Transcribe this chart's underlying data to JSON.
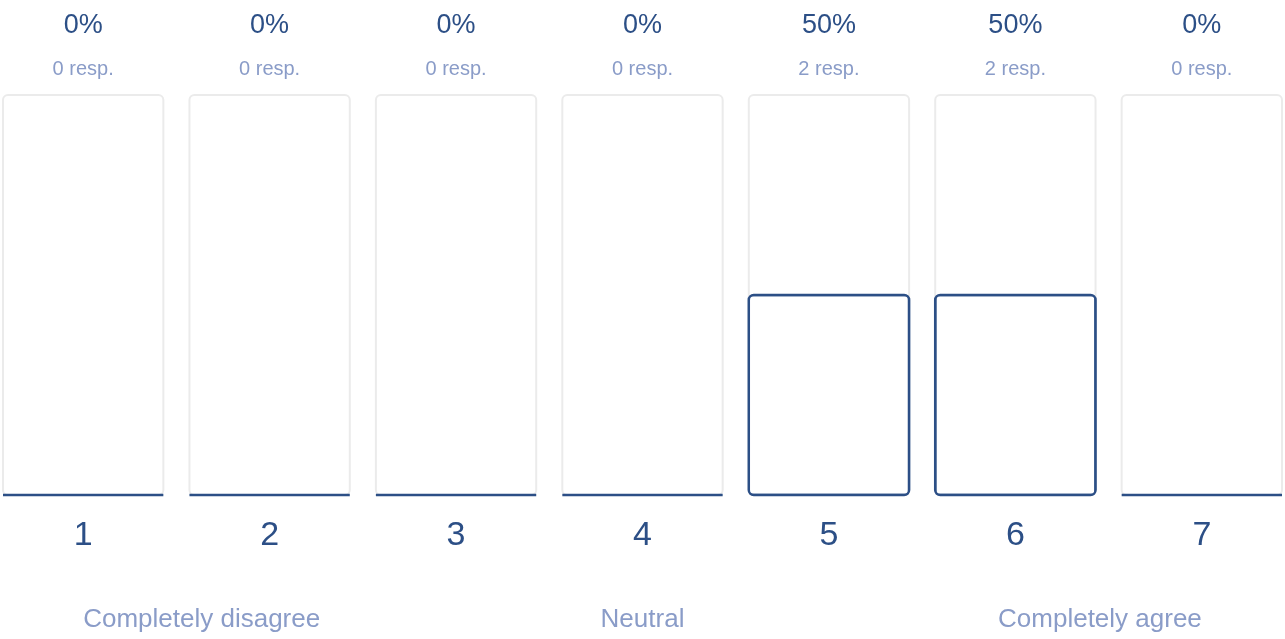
{
  "chart_data": {
    "type": "bar",
    "categories": [
      "1",
      "2",
      "3",
      "4",
      "5",
      "6",
      "7"
    ],
    "series": [
      {
        "color": "#2c4f86",
        "values": [
          0,
          0,
          0,
          0,
          50,
          50,
          0
        ],
        "value_labels": [
          "0%",
          "0%",
          "0%",
          "0%",
          "50%",
          "50%",
          "0%"
        ]
      }
    ],
    "ylim": [
      0,
      100
    ],
    "tick_labels": "x",
    "grid": false,
    "annotations": [
      "0 resp.",
      "0 resp.",
      "0 resp.",
      "0 resp.",
      "2 resp.",
      "2 resp.",
      "0 resp.",
      "Completely disagree",
      "Neutral",
      "Completely agree"
    ]
  }
}
